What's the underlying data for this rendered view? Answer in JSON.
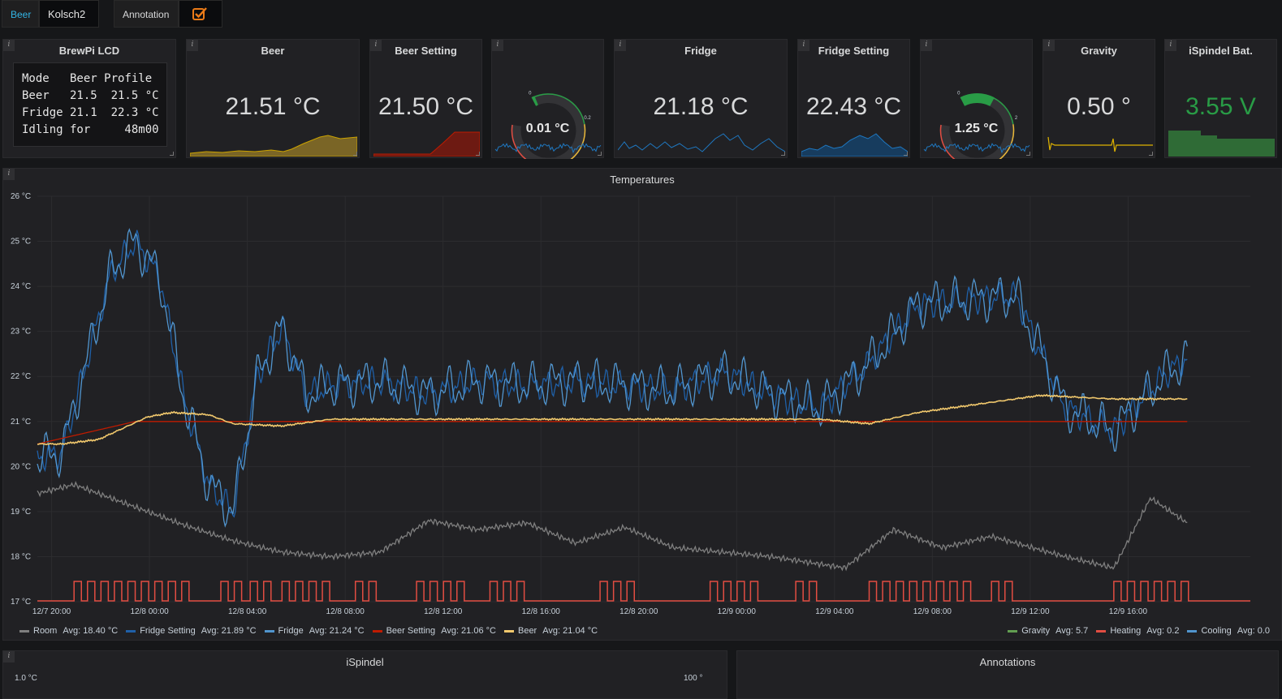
{
  "topbar": {
    "beer_label": "Beer",
    "beer_value": "Kolsch2",
    "annotation_label": "Annotation"
  },
  "stats": {
    "lcd": {
      "title": "BrewPi LCD",
      "lines": [
        "Mode   Beer Profile",
        "Beer   21.5  21.5 °C",
        "Fridge 21.1  22.3 °C",
        "Idling for     48m00"
      ]
    },
    "beer": {
      "title": "Beer",
      "value": "21.51 °C",
      "color": "#cca300"
    },
    "beer_setting": {
      "title": "Beer Setting",
      "value": "21.50 °C",
      "color": "#bf1b00"
    },
    "gauge1": {
      "value": "0.01 °C",
      "level": 0.01,
      "max": 0.6,
      "ticks": [
        "0",
        "0.2",
        "0.4"
      ],
      "color": "#1f78c1"
    },
    "fridge": {
      "title": "Fridge",
      "value": "21.18 °C",
      "color": "#1f78c1"
    },
    "fridge_setting": {
      "title": "Fridge Setting",
      "value": "22.43 °C",
      "color": "#1f78c1"
    },
    "gauge2": {
      "value": "1.25 °C",
      "level": 1.25,
      "max": 7,
      "ticks": [
        "0",
        "2",
        "5"
      ],
      "color": "#1f78c1"
    },
    "gravity": {
      "title": "Gravity",
      "value": "0.50 °",
      "color": "#e0b400"
    },
    "battery": {
      "title": "iSpindel Bat.",
      "value": "3.55 V",
      "color": "#299c46"
    }
  },
  "temperatures": {
    "title": "Temperatures",
    "y_ticks": [
      "26 °C",
      "25 °C",
      "24 °C",
      "23 °C",
      "22 °C",
      "21 °C",
      "20 °C",
      "19 °C",
      "18 °C",
      "17 °C"
    ],
    "x_ticks": [
      "12/7 20:00",
      "12/8 00:00",
      "12/8 04:00",
      "12/8 08:00",
      "12/8 12:00",
      "12/8 16:00",
      "12/8 20:00",
      "12/9 00:00",
      "12/9 04:00",
      "12/9 08:00",
      "12/9 12:00",
      "12/9 16:00"
    ],
    "legend_left": [
      {
        "name": "Room",
        "avg": "Avg: 18.40 °C",
        "color": "#7f7f7f"
      },
      {
        "name": "Fridge Setting",
        "avg": "Avg: 21.89 °C",
        "color": "#1f60a8"
      },
      {
        "name": "Fridge",
        "avg": "Avg: 21.24 °C",
        "color": "#5195ce"
      },
      {
        "name": "Beer Setting",
        "avg": "Avg: 21.06 °C",
        "color": "#bf1b00"
      },
      {
        "name": "Beer",
        "avg": "Avg: 21.04 °C",
        "color": "#f2c96d"
      }
    ],
    "legend_right": [
      {
        "name": "Gravity",
        "avg": "Avg: 5.7",
        "color": "#629e51"
      },
      {
        "name": "Heating",
        "avg": "Avg: 0.2",
        "color": "#e24d42"
      },
      {
        "name": "Cooling",
        "avg": "Avg: 0.0",
        "color": "#5195ce"
      }
    ]
  },
  "chart_data": {
    "type": "line",
    "title": "Temperatures",
    "ylim": [
      17,
      26
    ],
    "x_range": [
      "12/7 19:25",
      "12/9 21:00"
    ],
    "series": [
      {
        "name": "Room",
        "points": [
          [
            0,
            19.4
          ],
          [
            1.5,
            19.6
          ],
          [
            4,
            19.1
          ],
          [
            6,
            18.7
          ],
          [
            8,
            18.35
          ],
          [
            10,
            18.1
          ],
          [
            12,
            18.0
          ],
          [
            14,
            18.1
          ],
          [
            16,
            18.8
          ],
          [
            18,
            18.6
          ],
          [
            20,
            18.75
          ],
          [
            22,
            18.3
          ],
          [
            24,
            18.65
          ],
          [
            26,
            18.2
          ],
          [
            30,
            18.0
          ],
          [
            33,
            17.75
          ],
          [
            35,
            18.6
          ],
          [
            37,
            18.2
          ],
          [
            39,
            18.45
          ],
          [
            42,
            18.0
          ],
          [
            44,
            17.75
          ],
          [
            45.5,
            19.3
          ],
          [
            47,
            18.75
          ]
        ]
      },
      {
        "name": "Fridge Setting",
        "points": [
          [
            0,
            20.2
          ],
          [
            1,
            20.3
          ],
          [
            3,
            24.3
          ],
          [
            4,
            25.0
          ],
          [
            5,
            24.2
          ],
          [
            6,
            21.5
          ],
          [
            7,
            19.6
          ],
          [
            8,
            19.0
          ],
          [
            9,
            22.0
          ],
          [
            10,
            23.1
          ],
          [
            11,
            21.6
          ],
          [
            12,
            21.8
          ],
          [
            14,
            21.9
          ],
          [
            16,
            21.6
          ],
          [
            18,
            21.9
          ],
          [
            20,
            21.8
          ],
          [
            22,
            21.9
          ],
          [
            24,
            21.8
          ],
          [
            26,
            21.7
          ],
          [
            28,
            22.1
          ],
          [
            30,
            21.6
          ],
          [
            32,
            21.3
          ],
          [
            34,
            22.3
          ],
          [
            36,
            23.6
          ],
          [
            38,
            23.7
          ],
          [
            40,
            23.8
          ],
          [
            42,
            21.3
          ],
          [
            44,
            20.8
          ],
          [
            46,
            22.0
          ],
          [
            47,
            22.4
          ]
        ]
      },
      {
        "name": "Beer Setting",
        "points": [
          [
            0,
            20.5
          ],
          [
            4,
            21.0
          ],
          [
            47,
            21.0
          ],
          [
            47,
            21.5
          ]
        ]
      },
      {
        "name": "Beer",
        "points": [
          [
            0,
            20.5
          ],
          [
            1,
            20.5
          ],
          [
            2.5,
            20.6
          ],
          [
            4.5,
            21.1
          ],
          [
            5.5,
            21.2
          ],
          [
            7,
            21.15
          ],
          [
            8,
            20.95
          ],
          [
            10,
            20.9
          ],
          [
            12,
            21.05
          ],
          [
            32,
            21.05
          ],
          [
            34,
            20.95
          ],
          [
            36,
            21.2
          ],
          [
            38,
            21.35
          ],
          [
            41,
            21.58
          ],
          [
            44,
            21.5
          ],
          [
            47,
            21.5
          ]
        ]
      }
    ]
  },
  "ispindel": {
    "title": "iSpindel",
    "y_left": "1.0 °C",
    "y_right": "100 °"
  },
  "annotations": {
    "title": "Annotations"
  }
}
